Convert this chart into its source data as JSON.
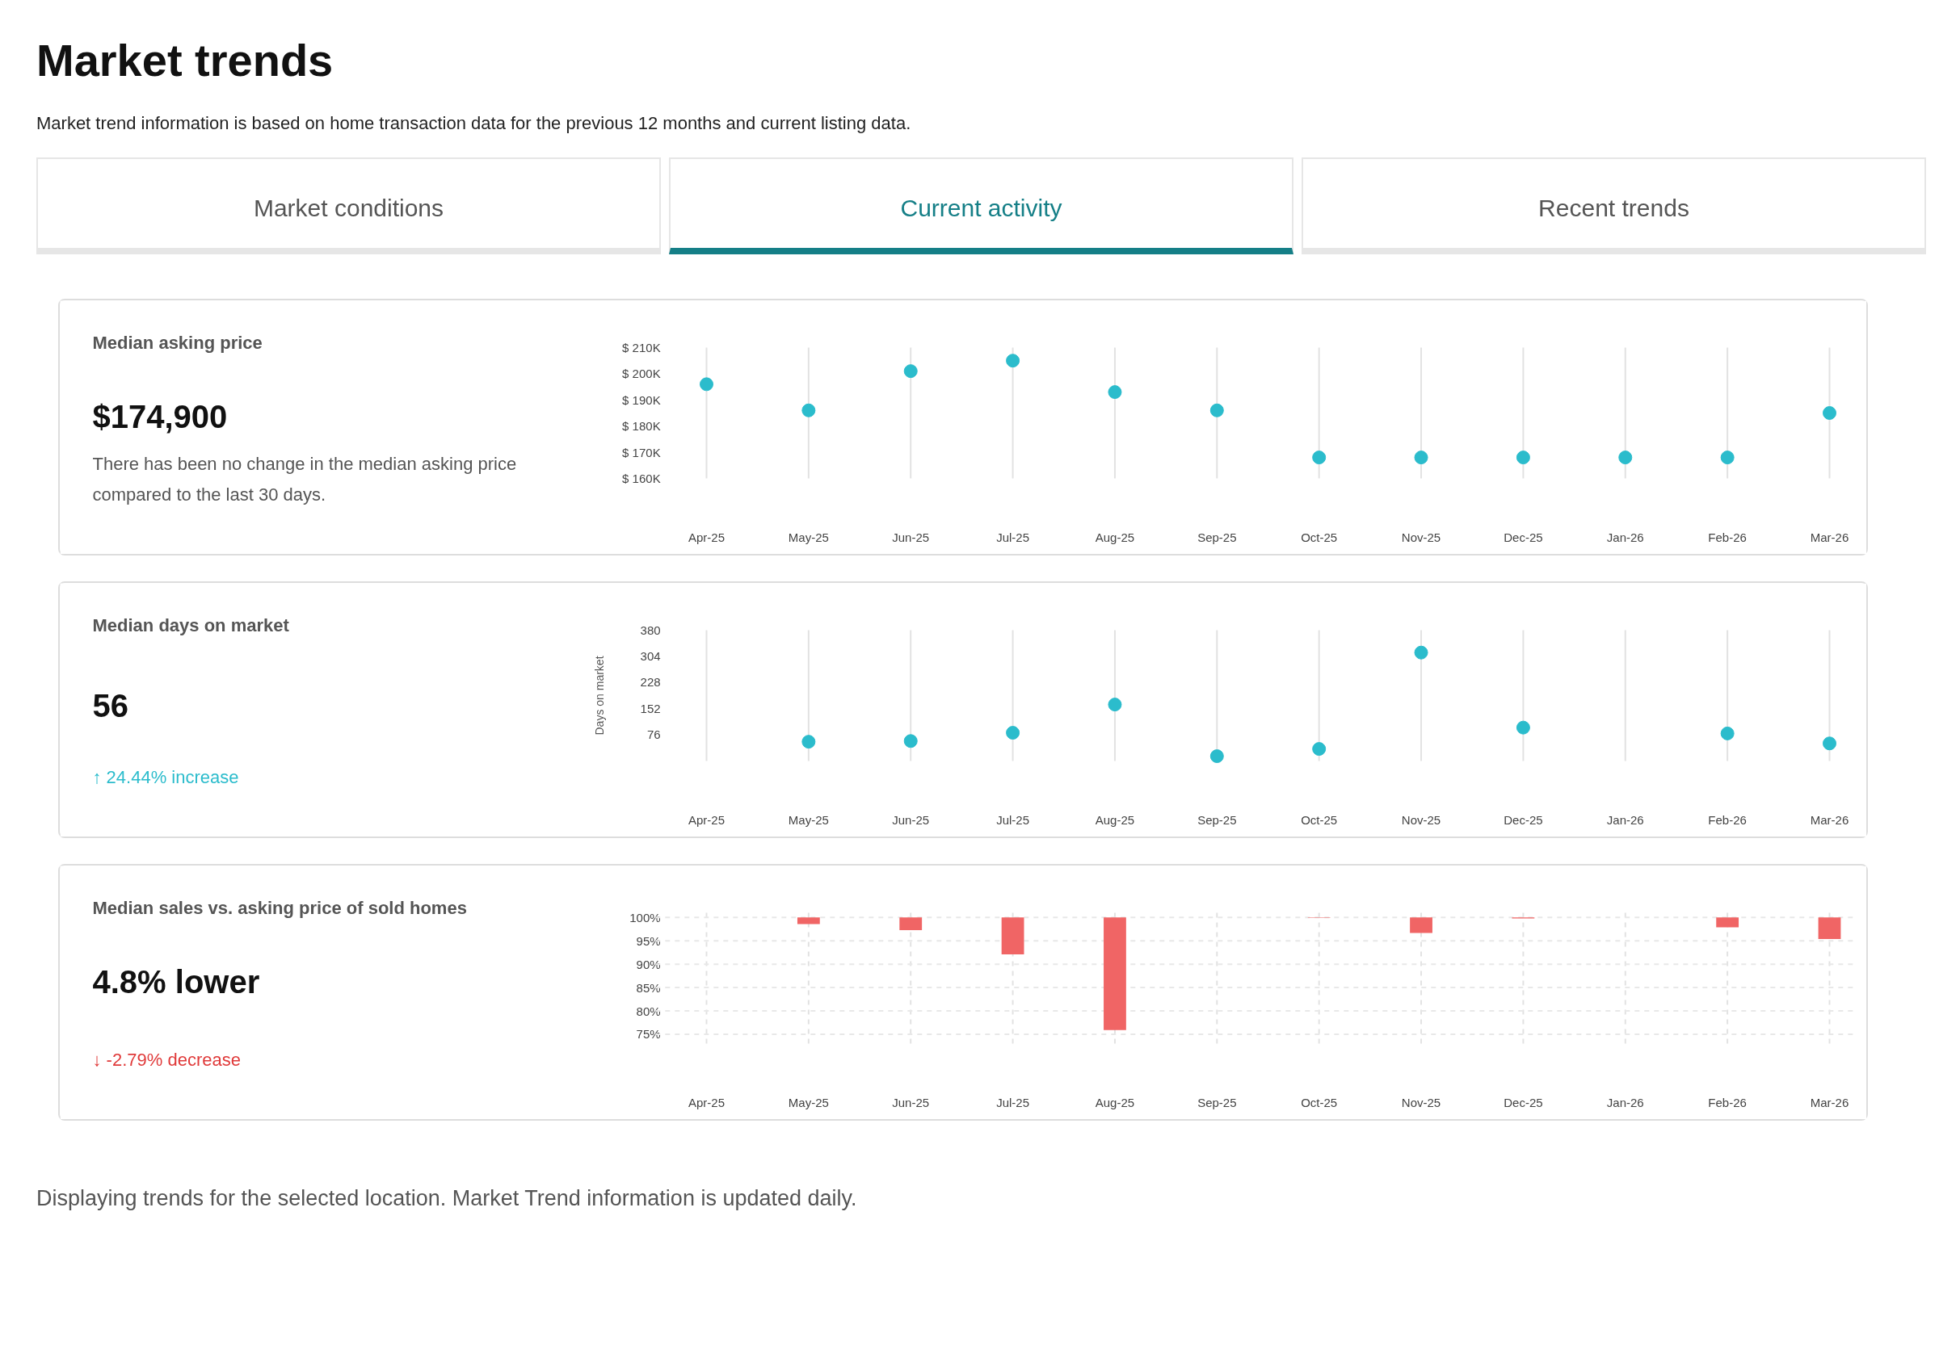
{
  "chart_data": [
    {
      "type": "other",
      "title": "Market trends",
      "subtitle": "Market trend information is based on home transaction data for the previous 12 months and current listing data.",
      "annotations": [
        "Market conditions",
        "Current activity",
        "Recent trends",
        "Displaying trends for the selected location. Market Trend information is updated daily."
      ]
    },
    {
      "type": "scatter",
      "annotations": [
        "Median asking price",
        "$174,900",
        "There has been no change in the median asking price compared to the last 30 days."
      ],
      "categories": [
        "Apr-25",
        "May-25",
        "Jun-25",
        "Jul-25",
        "Aug-25",
        "Sep-25",
        "Oct-25",
        "Nov-25",
        "Dec-25",
        "Jan-26",
        "Feb-26",
        "Mar-26"
      ],
      "values": [
        196000,
        186000,
        201000,
        205000,
        193000,
        186000,
        168000,
        168000,
        168000,
        168000,
        168000,
        185000
      ],
      "color": "#2bbccc",
      "marker": "circle",
      "grid": "x",
      "ylim": [
        160000,
        210000
      ],
      "yticks": [
        {
          "value": 160000,
          "label": "$ 160K"
        },
        {
          "value": 170000,
          "label": "$ 170K"
        },
        {
          "value": 180000,
          "label": "$ 180K"
        },
        {
          "value": 190000,
          "label": "$ 190K"
        },
        {
          "value": 200000,
          "label": "$ 200K"
        },
        {
          "value": 210000,
          "label": "$ 210K"
        }
      ]
    },
    {
      "type": "scatter",
      "annotations": [
        "Median days on market",
        "56",
        "↑ 24.44% increase"
      ],
      "ylabel": "Days on market",
      "categories": [
        "Apr-25",
        "May-25",
        "Jun-25",
        "Jul-25",
        "Aug-25",
        "Sep-25",
        "Oct-25",
        "Nov-25",
        "Dec-25",
        "Jan-26",
        "Feb-26",
        "Mar-26"
      ],
      "values": [
        null,
        56,
        58,
        82,
        164,
        14,
        35,
        315,
        97,
        null,
        80,
        51
      ],
      "color": "#2bbccc",
      "marker": "circle",
      "grid": "x",
      "ylim": [
        0,
        380
      ],
      "yticks": [
        76,
        152,
        228,
        304,
        380
      ]
    },
    {
      "type": "bar",
      "annotations": [
        "Median sales vs. asking price of sold homes",
        "4.8% lower",
        "↓ -2.79% decrease"
      ],
      "categories": [
        "Apr-25",
        "May-25",
        "Jun-25",
        "Jul-25",
        "Aug-25",
        "Sep-25",
        "Oct-25",
        "Nov-25",
        "Dec-25",
        "Jan-26",
        "Feb-26",
        "Mar-26"
      ],
      "base": [
        null,
        100,
        100,
        100,
        100,
        null,
        100,
        100,
        100,
        null,
        100,
        100
      ],
      "values": [
        null,
        -1.4,
        -2.7,
        -7.9,
        -24.1,
        null,
        -0.1,
        -3.3,
        -0.2,
        null,
        -2.1,
        -4.6
      ],
      "color": "#f06565",
      "grid": true,
      "ylim": [
        73,
        101
      ],
      "yticks": [
        {
          "value": 75,
          "label": "75%"
        },
        {
          "value": 80,
          "label": "80%"
        },
        {
          "value": 85,
          "label": "85%"
        },
        {
          "value": 90,
          "label": "90%"
        },
        {
          "value": 95,
          "label": "95%"
        },
        {
          "value": 100,
          "label": "100%"
        }
      ]
    }
  ]
}
